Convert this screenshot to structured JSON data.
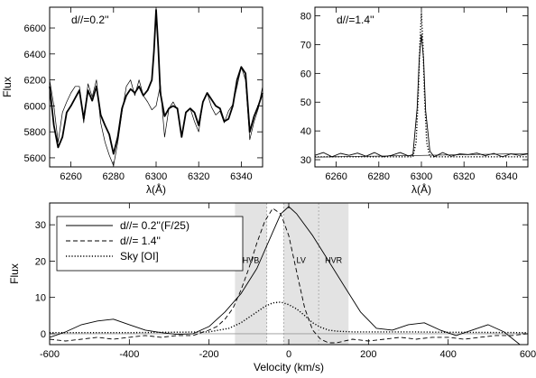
{
  "chart_data": [
    {
      "type": "line",
      "panel": "top-left",
      "annotation": "d//=0.2''",
      "xlabel": "λ(Å)",
      "ylabel": "Flux",
      "xlim": [
        6250,
        6350
      ],
      "ylim": [
        5530,
        6760
      ],
      "xticks": [
        6260,
        6280,
        6300,
        6320,
        6340
      ],
      "yticks": [
        5600,
        5800,
        6000,
        6200,
        6400,
        6600
      ],
      "series": [
        {
          "style": "thick",
          "x": [
            6250,
            6252,
            6254,
            6256,
            6258,
            6260,
            6262,
            6264,
            6266,
            6268,
            6270,
            6272,
            6274,
            6276,
            6278,
            6280,
            6282,
            6284,
            6286,
            6288,
            6290,
            6292,
            6294,
            6296,
            6298,
            6299,
            6300,
            6301,
            6302,
            6304,
            6306,
            6308,
            6310,
            6312,
            6314,
            6316,
            6318,
            6320,
            6322,
            6324,
            6326,
            6328,
            6330,
            6332,
            6334,
            6336,
            6338,
            6340,
            6342,
            6344,
            6346,
            6348,
            6350
          ],
          "y": [
            6150,
            5850,
            5680,
            5760,
            5950,
            6000,
            6060,
            6120,
            5900,
            6120,
            6040,
            6150,
            5930,
            5850,
            5780,
            5630,
            5760,
            5980,
            6080,
            6130,
            6100,
            6150,
            6080,
            6120,
            6200,
            6420,
            6740,
            6450,
            6100,
            5920,
            5980,
            6000,
            5980,
            5760,
            5950,
            5980,
            5950,
            5850,
            6030,
            6100,
            6050,
            6000,
            5980,
            5880,
            5900,
            6000,
            6200,
            6300,
            6250,
            5800,
            5920,
            6000,
            6100
          ]
        },
        {
          "style": "thin",
          "x": [
            6250,
            6252,
            6254,
            6256,
            6258,
            6260,
            6262,
            6264,
            6266,
            6268,
            6270,
            6272,
            6274,
            6276,
            6278,
            6280,
            6282,
            6284,
            6286,
            6288,
            6290,
            6292,
            6294,
            6296,
            6298,
            6300,
            6302,
            6304,
            6306,
            6308,
            6310,
            6312,
            6314,
            6316,
            6318,
            6320,
            6322,
            6324,
            6326,
            6328,
            6330,
            6332,
            6334,
            6336,
            6338,
            6340,
            6342,
            6344,
            6346,
            6348,
            6350
          ],
          "y": [
            6200,
            6000,
            5720,
            5950,
            6030,
            6100,
            6150,
            6150,
            5870,
            6170,
            6070,
            6200,
            5870,
            5720,
            5620,
            5540,
            5720,
            5950,
            6150,
            6200,
            6080,
            6200,
            6080,
            6030,
            5970,
            6000,
            6160,
            5760,
            5980,
            6030,
            5970,
            5760,
            5950,
            5980,
            5880,
            5800,
            6030,
            6100,
            5990,
            5930,
            5960,
            5870,
            5960,
            6010,
            6150,
            6300,
            6200,
            5740,
            5880,
            5980,
            6150
          ]
        }
      ]
    },
    {
      "type": "line",
      "panel": "top-right",
      "annotation": "d//=1.4''",
      "xlabel": "λ(Å)",
      "ylabel": "",
      "xlim": [
        6250,
        6350
      ],
      "ylim": [
        27.5,
        83
      ],
      "xticks": [
        6260,
        6280,
        6300,
        6320,
        6340
      ],
      "yticks": [
        30,
        40,
        50,
        60,
        70,
        80
      ],
      "series": [
        {
          "style": "solid",
          "x": [
            6250,
            6254,
            6258,
            6262,
            6266,
            6270,
            6274,
            6278,
            6282,
            6286,
            6290,
            6294,
            6296,
            6298,
            6299,
            6300,
            6301,
            6302,
            6304,
            6306,
            6310,
            6314,
            6318,
            6322,
            6326,
            6330,
            6334,
            6338,
            6342,
            6346,
            6350
          ],
          "y": [
            31.5,
            32.5,
            31.0,
            32.2,
            31.5,
            32.3,
            31.2,
            32.5,
            31.0,
            31.5,
            32.5,
            31.3,
            31.8,
            48.0,
            65.0,
            73.5,
            65.0,
            47.0,
            33.0,
            31.0,
            32.5,
            31.2,
            32.0,
            31.8,
            32.3,
            31.4,
            32.2,
            31.0,
            32.0,
            31.5,
            32.0
          ]
        },
        {
          "style": "dotted",
          "x": [
            6250,
            6296,
            6297.5,
            6298.5,
            6299.3,
            6300,
            6300.7,
            6301.5,
            6302.5,
            6304,
            6350
          ],
          "y": [
            31,
            31,
            36,
            52,
            70,
            81,
            70,
            52,
            36,
            31,
            31
          ]
        },
        {
          "style": "continuum",
          "x": [
            6250,
            6350
          ],
          "y": [
            30.9,
            32.1
          ]
        }
      ]
    },
    {
      "type": "line",
      "panel": "bottom",
      "xlabel": "Velocity (km/s)",
      "ylabel": "Flux",
      "xlim": [
        -600,
        600
      ],
      "ylim": [
        -3,
        36
      ],
      "xticks": [
        -600,
        -400,
        -200,
        0,
        200,
        400,
        600
      ],
      "yticks": [
        0,
        10,
        20,
        30
      ],
      "legend_position": "top-left",
      "bands": [
        {
          "label": "HVB",
          "x": [
            -135,
            -55
          ]
        },
        {
          "label": "LV",
          "x": [
            -13,
            75
          ]
        },
        {
          "label": "HVR",
          "x": [
            75,
            150
          ]
        }
      ],
      "vlines": [
        -55,
        -13,
        75
      ],
      "series": [
        {
          "name": "d//= 0.2''(F/25)",
          "style": "solid",
          "x": [
            -600,
            -560,
            -520,
            -480,
            -440,
            -400,
            -360,
            -320,
            -280,
            -240,
            -200,
            -160,
            -120,
            -80,
            -40,
            -20,
            0,
            20,
            60,
            100,
            140,
            180,
            220,
            260,
            300,
            340,
            380,
            420,
            460,
            500,
            540,
            580
          ],
          "y": [
            -1,
            0.5,
            2.5,
            3.5,
            4.0,
            2.5,
            1.0,
            0.3,
            -0.2,
            0,
            2,
            6,
            11,
            18,
            28,
            33,
            35,
            33,
            27,
            20,
            13,
            6,
            1.5,
            1.0,
            2.5,
            3.0,
            1.0,
            -0.5,
            1.0,
            2.5,
            0.5,
            -3.0
          ]
        },
        {
          "name": "d//= 1.4''",
          "style": "dashed",
          "x": [
            -600,
            -560,
            -520,
            -480,
            -440,
            -400,
            -360,
            -320,
            -280,
            -240,
            -200,
            -180,
            -160,
            -140,
            -120,
            -100,
            -80,
            -60,
            -40,
            -20,
            0,
            20,
            40,
            60,
            80,
            100,
            120,
            160,
            200,
            240,
            280,
            320,
            360,
            400,
            440,
            480,
            520,
            560,
            600
          ],
          "y": [
            -1.5,
            -2.0,
            -1.5,
            -1.0,
            -1.5,
            -1.0,
            -0.5,
            -1.0,
            -0.5,
            -0.5,
            1,
            2,
            4,
            7,
            12,
            18,
            25,
            31,
            34.5,
            33,
            27,
            17,
            7,
            1,
            -1.5,
            -2.5,
            -2.5,
            -1.5,
            -2,
            -1.5,
            -1,
            -1.5,
            -1,
            -1,
            -1.5,
            -1,
            -0.5,
            -0.5,
            0
          ]
        },
        {
          "name": "Sky [OI]",
          "style": "dotted",
          "x": [
            -600,
            -400,
            -200,
            -150,
            -120,
            -100,
            -80,
            -60,
            -40,
            -20,
            0,
            20,
            40,
            60,
            80,
            100,
            120,
            160,
            200,
            300,
            400,
            600
          ],
          "y": [
            0.3,
            0.3,
            0.5,
            1.5,
            3,
            4.5,
            6,
            7.5,
            8.5,
            8.7,
            8,
            6.8,
            5,
            3,
            1.8,
            1,
            0.7,
            0.5,
            0.5,
            0.5,
            0.4,
            0.3
          ]
        }
      ]
    }
  ],
  "colors": {
    "band": "#e3e3e3",
    "line": "#000000",
    "guide": "#999999"
  }
}
